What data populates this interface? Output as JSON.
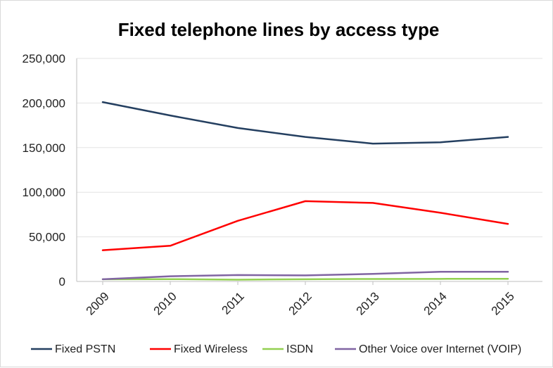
{
  "chart_data": {
    "type": "line",
    "title": "Fixed telephone lines by access type",
    "categories": [
      "2009",
      "2010",
      "2011",
      "2012",
      "2013",
      "2014",
      "2015"
    ],
    "y_ticks": [
      "0",
      "50,000",
      "100,000",
      "150,000",
      "200,000",
      "250,000"
    ],
    "ylim": [
      0,
      250000
    ],
    "grid": "horizontal",
    "legend_position": "bottom",
    "series": [
      {
        "name": "Fixed PSTN",
        "color": "#243f60",
        "values": [
          201000,
          186000,
          172000,
          162000,
          154500,
          156000,
          162000
        ]
      },
      {
        "name": "Fixed Wireless",
        "color": "#ff0000",
        "values": [
          35000,
          40000,
          68000,
          90000,
          88000,
          77000,
          64500
        ]
      },
      {
        "name": "ISDN",
        "color": "#92d050",
        "values": [
          2500,
          2600,
          2000,
          2500,
          2800,
          2900,
          3000
        ]
      },
      {
        "name": "Other Voice over Internet (VOIP)",
        "color": "#8064a2",
        "values": [
          2500,
          5800,
          7200,
          6800,
          8500,
          10800,
          10800
        ]
      }
    ]
  }
}
